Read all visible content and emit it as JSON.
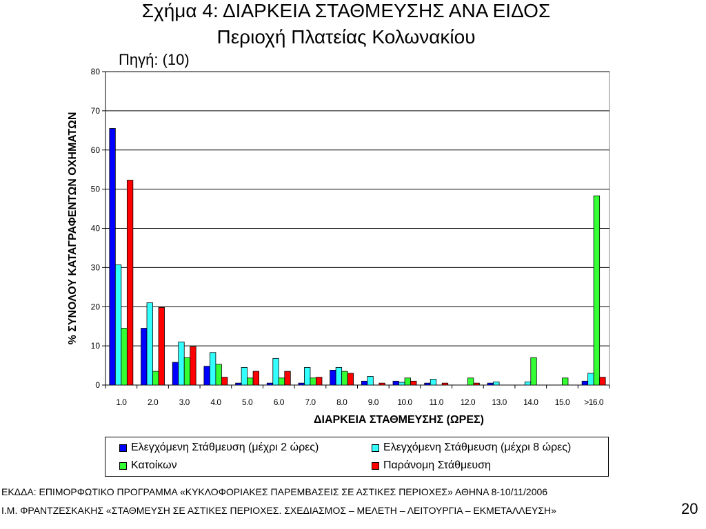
{
  "chart_data": {
    "type": "bar",
    "title": "Σχήμα 4: ΔΙΑΡΚΕΙΑ ΣΤΑΘΜΕΥΣΗΣ ΑΝΑ ΕΙΔΟΣ",
    "subtitle": "Περιοχή Πλατείας Κολωνακίου",
    "source": "Πηγή: (10)",
    "xlabel": "ΔΙΑΡΚΕΙΑ ΣΤΑΘΜΕΥΣΗΣ (ΩΡΕΣ)",
    "ylabel": "% ΣΥΝΟΛΟΥ ΚΑΤΑΓΡΑΦΕΝΤΩΝ ΟΧΗΜΑΤΩΝ",
    "ylim": [
      0,
      80
    ],
    "yticks": [
      0,
      10,
      20,
      30,
      40,
      50,
      60,
      70,
      80
    ],
    "grid": true,
    "legend_position": "bottom",
    "categories": [
      "1.0",
      "2.0",
      "3.0",
      "4.0",
      "5.0",
      "6.0",
      "7.0",
      "8.0",
      "9.0",
      "10.0",
      "11.0",
      "12.0",
      "13.0",
      "14.0",
      "15.0",
      ">16.0"
    ],
    "series": [
      {
        "name": "Ελεγχόμενη Στάθμευση (μέχρι 2 ώρες)",
        "color": "#0000ff",
        "values": [
          65.5,
          14.5,
          5.8,
          4.8,
          0.5,
          0.5,
          0.5,
          3.8,
          1.0,
          1.0,
          0.5,
          0,
          0.5,
          0,
          0,
          1.0
        ]
      },
      {
        "name": "Ελεγχόμενη Στάθμευση (μέχρι 8 ώρες)",
        "color": "#33ffff",
        "values": [
          30.7,
          21.0,
          11.0,
          8.3,
          4.5,
          6.8,
          4.5,
          4.5,
          2.2,
          0.7,
          1.5,
          0,
          0.8,
          0.8,
          0,
          3.0
        ]
      },
      {
        "name": "Κατοίκων",
        "color": "#33ff33",
        "values": [
          14.5,
          3.5,
          7.0,
          5.3,
          1.8,
          1.8,
          1.8,
          3.5,
          0,
          1.8,
          0,
          1.8,
          0,
          7.0,
          1.8,
          48.3
        ]
      },
      {
        "name": "Παράνομη Στάθμευση",
        "color": "#ff0000",
        "values": [
          52.3,
          19.8,
          9.8,
          2.0,
          3.5,
          3.5,
          2.0,
          3.0,
          0.5,
          1.0,
          0.5,
          0.5,
          0,
          0,
          0,
          2.0
        ]
      }
    ]
  },
  "footer": {
    "line1": "ΕΚΔΔΑ: ΕΠΙΜΟΡΦΩΤΙΚΟ ΠΡΟΓΡΑΜΜΑ «ΚΥΚΛΟΦΟΡΙΑΚΕΣ ΠΑΡΕΜΒΑΣΕΙΣ ΣΕ ΑΣΤΙΚΕΣ ΠΕΡΙΟΧΕΣ» ΑΘΗΝΑ 8-10/11/2006",
    "line2": "Ι.Μ. ΦΡΑΝΤΖΕΣΚΑΚΗΣ «ΣΤΑΘΜΕΥΣΗ ΣΕ ΑΣΤΙΚΕΣ ΠΕΡΙΟΧΕΣ. ΣΧΕΔΙΑΣΜΟΣ – ΜΕΛΕΤΗ – ΛΕΙΤΟΥΡΓΙΑ – ΕΚΜΕΤΑΛΛΕΥΣΗ»",
    "page_number": "20"
  }
}
